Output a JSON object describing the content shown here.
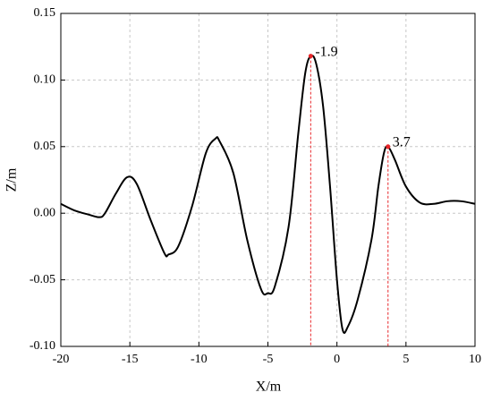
{
  "chart_data": {
    "type": "line",
    "x_label": "X/m",
    "y_label": "Z/m",
    "x": [
      -20,
      -19,
      -18,
      -17.2,
      -16.8,
      -16,
      -15.2,
      -14.5,
      -13.5,
      -12.5,
      -12.2,
      -11.5,
      -10.5,
      -9.5,
      -8.8,
      -8.5,
      -7.5,
      -6.5,
      -5.5,
      -5,
      -4.5,
      -3.5,
      -2.8,
      -2.3,
      -1.9,
      -1.5,
      -1,
      -0.5,
      0,
      0.4,
      0.8,
      1.5,
      2.5,
      3,
      3.4,
      3.7,
      4.2,
      5,
      6,
      7,
      8,
      9,
      10
    ],
    "series": [
      {
        "color": "#000000",
        "values": [
          0.007,
          0.002,
          -0.001,
          -0.003,
          0.0,
          0.015,
          0.027,
          0.022,
          -0.005,
          -0.03,
          -0.031,
          -0.025,
          0.005,
          0.045,
          0.056,
          0.054,
          0.03,
          -0.02,
          -0.057,
          -0.06,
          -0.055,
          -0.01,
          0.06,
          0.105,
          0.118,
          0.112,
          0.08,
          0.02,
          -0.05,
          -0.087,
          -0.085,
          -0.065,
          -0.02,
          0.02,
          0.045,
          0.05,
          0.04,
          0.02,
          0.008,
          0.007,
          0.009,
          0.009,
          0.007
        ]
      }
    ],
    "annotations": [
      {
        "text": "-1.9",
        "x": -1.9,
        "y": 0.118
      },
      {
        "text": "3.7",
        "x": 3.7,
        "y": 0.05
      }
    ],
    "annotation_color": "#e8262a",
    "xlim": [
      -20,
      10
    ],
    "xticks": [
      -20,
      -15,
      -10,
      -5,
      0,
      5,
      10
    ],
    "ylim": [
      -0.1,
      0.15
    ],
    "yticks": [
      {
        "value": -0.1,
        "label": "-0.10"
      },
      -0.05,
      {
        "value": 0,
        "label": "0.00"
      },
      0.05,
      {
        "value": 0.1,
        "label": "0.10"
      },
      0.15
    ],
    "grid": true
  }
}
